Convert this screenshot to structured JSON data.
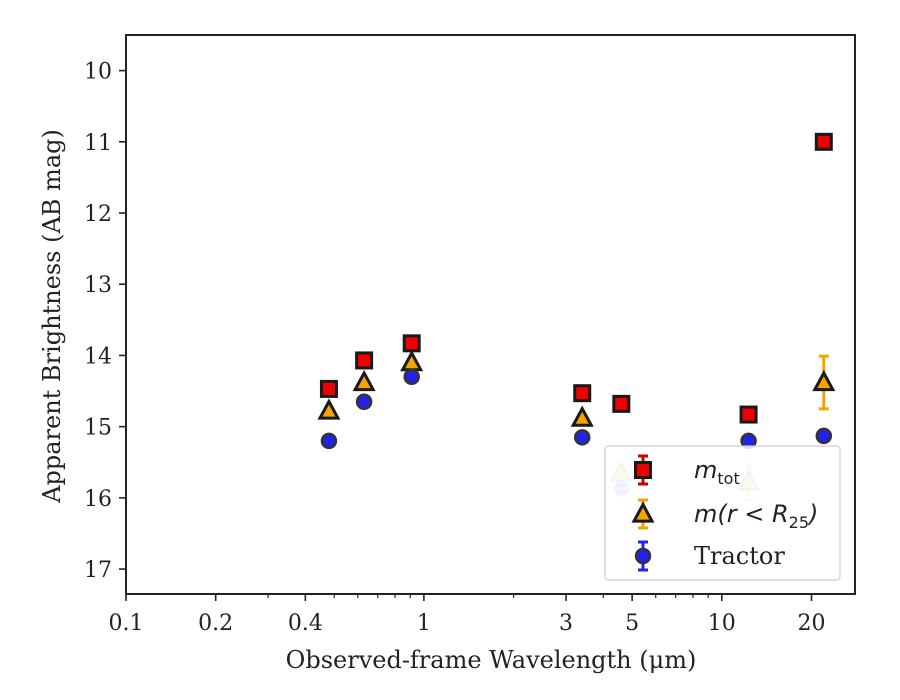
{
  "chart_data": {
    "type": "scatter",
    "xscale": "log",
    "xlim": [
      0.1,
      28
    ],
    "ylim": [
      17.35,
      9.5
    ],
    "y_inverted": true,
    "xlabel": "Observed-frame Wavelength (μm)",
    "ylabel": "Apparent Brightness (AB mag)",
    "xticks": [
      {
        "value": 0.1,
        "label": "0.1"
      },
      {
        "value": 0.2,
        "label": "0.2"
      },
      {
        "value": 0.4,
        "label": "0.4"
      },
      {
        "value": 1,
        "label": "1"
      },
      {
        "value": 3,
        "label": "3"
      },
      {
        "value": 5,
        "label": "5"
      },
      {
        "value": 10,
        "label": "10"
      },
      {
        "value": 20,
        "label": "20"
      }
    ],
    "yticks": [
      {
        "value": 10,
        "label": "10"
      },
      {
        "value": 11,
        "label": "11"
      },
      {
        "value": 12,
        "label": "12"
      },
      {
        "value": 13,
        "label": "13"
      },
      {
        "value": 14,
        "label": "14"
      },
      {
        "value": 15,
        "label": "15"
      },
      {
        "value": 16,
        "label": "16"
      },
      {
        "value": 17,
        "label": "17"
      }
    ],
    "grid": false,
    "legend_position": "lower-right",
    "series": [
      {
        "name": "m_tot",
        "legend_main": "m",
        "legend_sub": "tot",
        "marker": "square",
        "color": "#ee0000",
        "errcolor": "#cc0000",
        "points": [
          {
            "x": 0.48,
            "y": 14.47,
            "err": 0.03
          },
          {
            "x": 0.63,
            "y": 14.07,
            "err": 0.03
          },
          {
            "x": 0.91,
            "y": 13.83,
            "err": 0.03
          },
          {
            "x": 3.4,
            "y": 14.53,
            "err": 0.03
          },
          {
            "x": 4.6,
            "y": 14.68,
            "err": 0.03
          },
          {
            "x": 12.3,
            "y": 14.83,
            "err": 0.03
          },
          {
            "x": 22.0,
            "y": 11.0,
            "err": 0.03
          }
        ]
      },
      {
        "name": "m(r < R25)",
        "legend_main": "m(r < R",
        "legend_sub": "25",
        "legend_tail": ")",
        "marker": "triangle",
        "color": "#f5a300",
        "errcolor": "#f5a300",
        "points": [
          {
            "x": 0.48,
            "y": 14.78,
            "err": 0.03
          },
          {
            "x": 0.63,
            "y": 14.38,
            "err": 0.03
          },
          {
            "x": 0.91,
            "y": 14.1,
            "err": 0.03
          },
          {
            "x": 3.4,
            "y": 14.88,
            "err": 0.03
          },
          {
            "x": 4.6,
            "y": 15.65,
            "err": 0.05,
            "faded": true
          },
          {
            "x": 12.3,
            "y": 15.78,
            "err": 0.25,
            "faded": true
          },
          {
            "x": 22.0,
            "y": 14.38,
            "err": 0.37
          }
        ]
      },
      {
        "name": "Tractor",
        "legend_main": "Tractor",
        "marker": "circle",
        "color": "#2222ee",
        "errcolor": "#2222ee",
        "points": [
          {
            "x": 0.48,
            "y": 15.2,
            "err": 0.04
          },
          {
            "x": 0.63,
            "y": 14.65,
            "err": 0.04
          },
          {
            "x": 0.91,
            "y": 14.3,
            "err": 0.04
          },
          {
            "x": 3.4,
            "y": 15.15,
            "err": 0.04
          },
          {
            "x": 4.6,
            "y": 15.87,
            "err": 0.05,
            "faded": true
          },
          {
            "x": 12.3,
            "y": 15.2,
            "err": 0.05
          },
          {
            "x": 22.0,
            "y": 15.13,
            "err": 0.05
          }
        ]
      }
    ]
  }
}
